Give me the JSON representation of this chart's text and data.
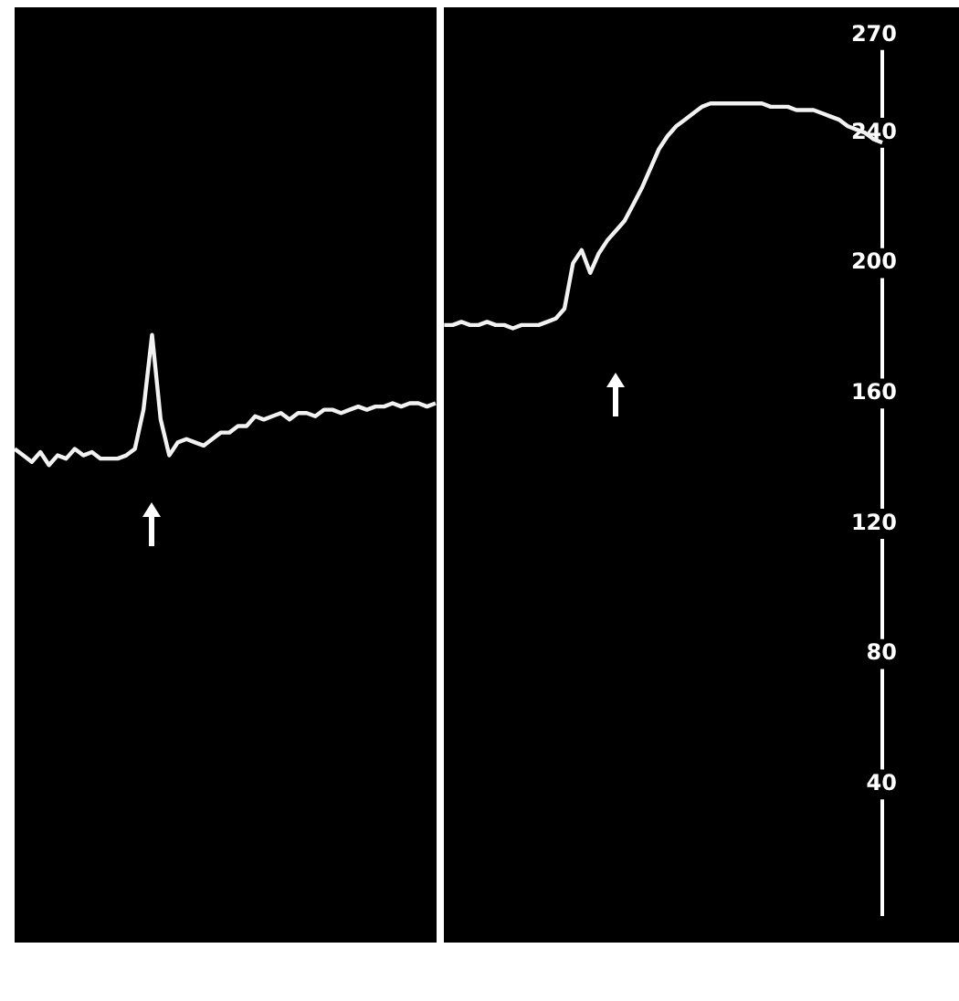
{
  "chart_data": {
    "type": "line",
    "categories": [
      null,
      null,
      null,
      null,
      null,
      null,
      null,
      null,
      null,
      null,
      null,
      null,
      null,
      null,
      null,
      null,
      null,
      null,
      null,
      null,
      null,
      null,
      null,
      null,
      null,
      null,
      null,
      null,
      null,
      null,
      null,
      null,
      null,
      null,
      null,
      null,
      null,
      null,
      null,
      null,
      null,
      null,
      null,
      null,
      null,
      null,
      null,
      null,
      null,
      null,
      null,
      null,
      null,
      null,
      null,
      null,
      null,
      null,
      null,
      null,
      null,
      null,
      null,
      null,
      null,
      null,
      null,
      null,
      null,
      null,
      null,
      null,
      null,
      null,
      null,
      null,
      null,
      null,
      null,
      null,
      null,
      null,
      null,
      null,
      null,
      null,
      null,
      null,
      null,
      null,
      null,
      null,
      null,
      null,
      null,
      null,
      null,
      null,
      null,
      null,
      null,
      null
    ],
    "series": [
      {
        "color": "#f2f2f2",
        "values": [
          143,
          141,
          139,
          142,
          138,
          141,
          140,
          143,
          141,
          142,
          140,
          140,
          140,
          141,
          143,
          155,
          178,
          152,
          141,
          145,
          146,
          145,
          144,
          146,
          148,
          148,
          150,
          150,
          153,
          152,
          153,
          154,
          152,
          154,
          154,
          153,
          155,
          155,
          154,
          155,
          156,
          155,
          156,
          156,
          157,
          156,
          157,
          157,
          156,
          157,
          null,
          null,
          null,
          null,
          null,
          null,
          null,
          null,
          null,
          null,
          null,
          null,
          null,
          null,
          null,
          null,
          null,
          null,
          null,
          null,
          null,
          null,
          null,
          null,
          null,
          null,
          null,
          null,
          null,
          null,
          null,
          null,
          null,
          null,
          null,
          null,
          null,
          null,
          null,
          null,
          null,
          null,
          null,
          null,
          null,
          null,
          null,
          null,
          null,
          null,
          null,
          null
        ]
      },
      {
        "color": "#f2f2f2",
        "values": [
          null,
          null,
          null,
          null,
          null,
          null,
          null,
          null,
          null,
          null,
          null,
          null,
          null,
          null,
          null,
          null,
          null,
          null,
          null,
          null,
          null,
          null,
          null,
          null,
          null,
          null,
          null,
          null,
          null,
          null,
          null,
          null,
          null,
          null,
          null,
          null,
          null,
          null,
          null,
          null,
          null,
          null,
          null,
          null,
          null,
          null,
          null,
          null,
          null,
          null,
          181,
          181,
          182,
          181,
          181,
          182,
          181,
          181,
          180,
          181,
          181,
          181,
          182,
          183,
          186,
          200,
          204,
          197,
          203,
          207,
          210,
          213,
          218,
          223,
          229,
          235,
          239,
          242,
          244,
          246,
          248,
          249,
          249,
          249,
          249,
          249,
          249,
          249,
          248,
          248,
          248,
          247,
          247,
          247,
          246,
          245,
          244,
          242,
          241,
          240,
          238,
          237
        ]
      }
    ],
    "ylim": [
      0,
      270
    ],
    "yticks": [
      40,
      80,
      120,
      160,
      200,
      240,
      270
    ],
    "tick_labels": "y",
    "grid": false,
    "legend": false,
    "marker": "none",
    "line_style": "solid"
  }
}
